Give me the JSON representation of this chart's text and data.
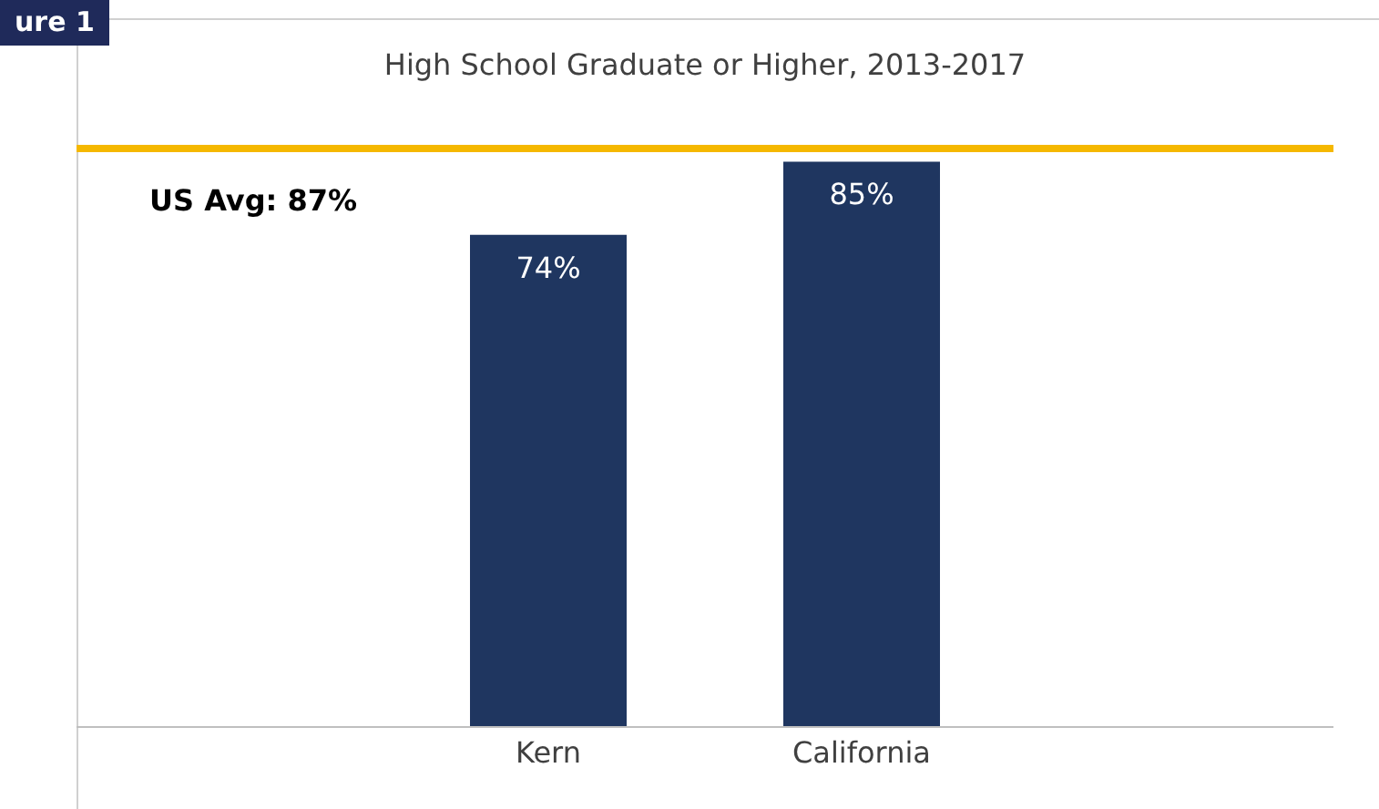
{
  "chart_data": {
    "type": "bar",
    "title": "High School Graduate or Higher, 2013-2017",
    "categories": [
      "Kern",
      "California"
    ],
    "values": [
      74,
      85
    ],
    "color": "#1f3660",
    "value_labels": [
      "74%",
      "85%"
    ],
    "tick_labels": "x",
    "grid": false,
    "legend": false,
    "ref_lines": [
      {
        "axis": "y",
        "value": 87,
        "label": "US Avg: 87%",
        "color": "#f5b800"
      }
    ],
    "annotations": [
      "ure 1"
    ]
  }
}
